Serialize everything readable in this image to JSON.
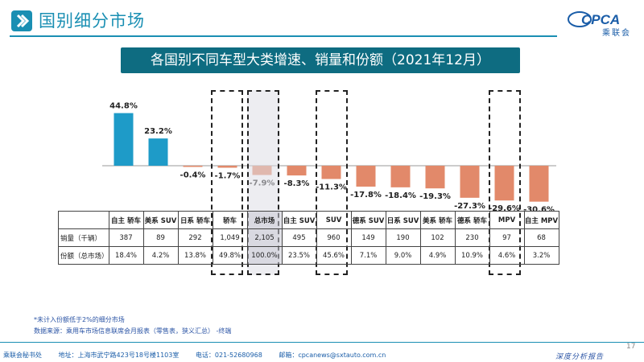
{
  "header": {
    "title": "国别细分市场"
  },
  "logo": {
    "brand": "CPCA",
    "text": "乘联会"
  },
  "banner": {
    "title": "各国别不同车型大类增速、销量和份额（2021年12月）"
  },
  "colors": {
    "positive": "#1e9bc8",
    "negative": "#e2896a",
    "accent": "#0e6c81"
  },
  "chart_data": {
    "type": "bar",
    "categories": [
      "自主 轿车",
      "美系 SUV",
      "日系 轿车",
      "轿车",
      "总市场",
      "自主 SUV",
      "SUV",
      "德系 SUV",
      "日系 SUV",
      "美系 轿车",
      "德系 轿车",
      "MPV",
      "自主 MPV"
    ],
    "values": [
      44.8,
      23.2,
      -0.4,
      -1.7,
      -7.9,
      -8.3,
      -11.3,
      -17.8,
      -18.4,
      -19.3,
      -27.3,
      -29.6,
      -30.6
    ],
    "value_labels": [
      "44.8%",
      "23.2%",
      "-0.4%",
      "-1.7%",
      "-7.9%",
      "-8.3%",
      "-11.3%",
      "-17.8%",
      "-18.4%",
      "-19.3%",
      "-27.3%",
      "-29.6%",
      "-30.6%"
    ],
    "title": "各国别不同车型大类增速、销量和份额（2021年12月）",
    "xlabel": "",
    "ylabel": "",
    "grid": false
  },
  "table": {
    "rows": [
      {
        "label": "销量（千辆）",
        "cells": [
          "387",
          "89",
          "292",
          "1,049",
          "2,105",
          "495",
          "960",
          "149",
          "190",
          "102",
          "230",
          "97",
          "68"
        ]
      },
      {
        "label": "份额（总市场）",
        "cells": [
          "18.4%",
          "4.2%",
          "13.8%",
          "49.8%",
          "100.0%",
          "23.5%",
          "45.6%",
          "7.1%",
          "9.0%",
          "4.9%",
          "10.9%",
          "4.6%",
          "3.2%"
        ]
      }
    ]
  },
  "notes": {
    "line1": "*未计入份额低于2%的细分市场",
    "line2": "数据来源：乘用车市场信息联席会月报表（零售表，狭义汇总）  -终端"
  },
  "footer": {
    "org": "乘联会秘书处",
    "address": "地址：上海市武宁路423号18号楼1103室",
    "phone": "电话：021-52680968",
    "email": "邮箱：cpcanews@sxtauto.com.cn",
    "page": "17",
    "report_tag": "深度分析报告"
  }
}
